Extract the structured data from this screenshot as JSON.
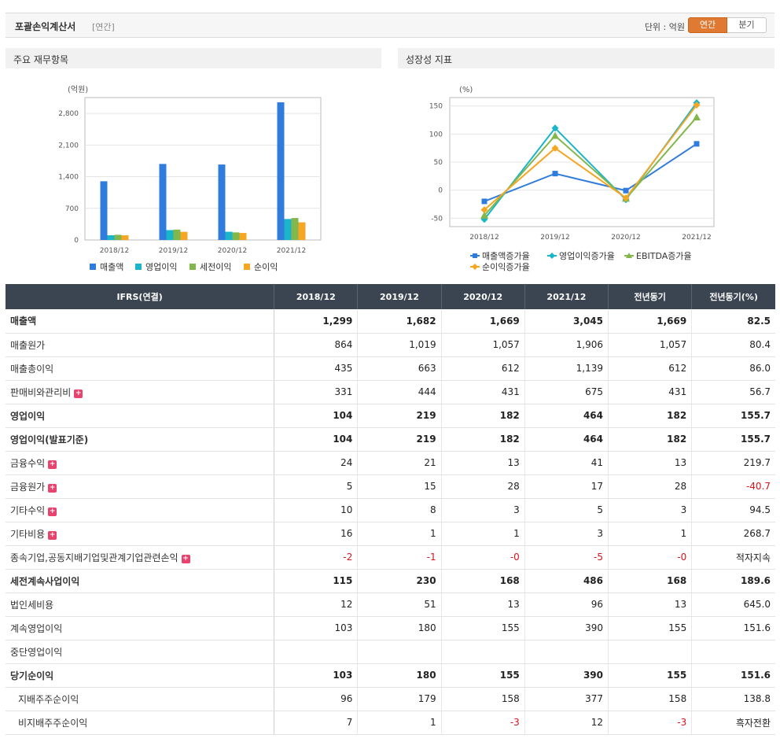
{
  "header": {
    "title": "포괄손익계산서",
    "period_label": "[연간]",
    "unit_label": "단위 : 억원",
    "tab_annual": "연간",
    "tab_quarter": "분기"
  },
  "panels": {
    "left_title": "주요 재무항목",
    "right_title": "성장성 지표"
  },
  "colors": {
    "accent": "#e07a33",
    "header_bg": "#3b4552",
    "negative": "#d6141d",
    "series_blue": "#2f7cdc",
    "series_cyan": "#1bb5c9",
    "series_green": "#82b74b",
    "series_orange": "#f5a623"
  },
  "chart_data": [
    {
      "type": "bar",
      "ylabel": "(억원)",
      "categories": [
        "2018/12",
        "2019/12",
        "2020/12",
        "2021/12"
      ],
      "yticks": [
        "0",
        "700",
        "1,400",
        "2,100",
        "2,800"
      ],
      "ylim": [
        0,
        3150
      ],
      "grid": true,
      "legend_position": "bottom",
      "series": [
        {
          "name": "매출액",
          "values": [
            1299,
            1682,
            1669,
            3045
          ]
        },
        {
          "name": "영업이익",
          "values": [
            104,
            219,
            182,
            464
          ]
        },
        {
          "name": "세전이익",
          "values": [
            115,
            230,
            168,
            486
          ]
        },
        {
          "name": "순이익",
          "values": [
            103,
            180,
            155,
            390
          ]
        }
      ]
    },
    {
      "type": "line",
      "ylabel": "(%)",
      "categories": [
        "2018/12",
        "2019/12",
        "2020/12",
        "2021/12"
      ],
      "yticks": [
        "-50",
        "0",
        "50",
        "100",
        "150"
      ],
      "ylim": [
        -65,
        165
      ],
      "grid": true,
      "legend_position": "bottom",
      "series": [
        {
          "name": "매출액증가율",
          "values": [
            -20,
            29.5,
            -0.8,
            82.5
          ]
        },
        {
          "name": "영업이익증가율",
          "values": [
            -52,
            110.6,
            -16.9,
            155.7
          ]
        },
        {
          "name": "EBITDA증가율",
          "values": [
            -45,
            97,
            -15,
            130
          ]
        },
        {
          "name": "순이익증가율",
          "values": [
            -35,
            74.8,
            -13.9,
            151.6
          ]
        }
      ]
    }
  ],
  "table": {
    "headers": [
      "IFRS(연결)",
      "2018/12",
      "2019/12",
      "2020/12",
      "2021/12",
      "전년동기",
      "전년동기(%)"
    ],
    "rows": [
      {
        "label": "매출액",
        "bold": true,
        "expand": false,
        "indent": false,
        "values": [
          "1,299",
          "1,682",
          "1,669",
          "3,045",
          "1,669",
          "82.5"
        ]
      },
      {
        "label": "매출원가",
        "bold": false,
        "expand": false,
        "indent": false,
        "values": [
          "864",
          "1,019",
          "1,057",
          "1,906",
          "1,057",
          "80.4"
        ]
      },
      {
        "label": "매출총이익",
        "bold": false,
        "expand": false,
        "indent": false,
        "values": [
          "435",
          "663",
          "612",
          "1,139",
          "612",
          "86.0"
        ]
      },
      {
        "label": "판매비와관리비",
        "bold": false,
        "expand": true,
        "indent": false,
        "values": [
          "331",
          "444",
          "431",
          "675",
          "431",
          "56.7"
        ]
      },
      {
        "label": "영업이익",
        "bold": true,
        "expand": false,
        "indent": false,
        "values": [
          "104",
          "219",
          "182",
          "464",
          "182",
          "155.7"
        ]
      },
      {
        "label": "영업이익(발표기준)",
        "bold": true,
        "expand": false,
        "indent": false,
        "values": [
          "104",
          "219",
          "182",
          "464",
          "182",
          "155.7"
        ]
      },
      {
        "label": "금융수익",
        "bold": false,
        "expand": true,
        "indent": false,
        "values": [
          "24",
          "21",
          "13",
          "41",
          "13",
          "219.7"
        ]
      },
      {
        "label": "금융원가",
        "bold": false,
        "expand": true,
        "indent": false,
        "values": [
          "5",
          "15",
          "28",
          "17",
          "28",
          "-40.7"
        ]
      },
      {
        "label": "기타수익",
        "bold": false,
        "expand": true,
        "indent": false,
        "values": [
          "10",
          "8",
          "3",
          "5",
          "3",
          "94.5"
        ]
      },
      {
        "label": "기타비용",
        "bold": false,
        "expand": true,
        "indent": false,
        "values": [
          "16",
          "1",
          "1",
          "3",
          "1",
          "268.7"
        ]
      },
      {
        "label": "종속기업,공동지배기업및관계기업관련손익",
        "bold": false,
        "expand": true,
        "indent": false,
        "values": [
          "-2",
          "-1",
          "-0",
          "-5",
          "-0",
          "적자지속"
        ]
      },
      {
        "label": "세전계속사업이익",
        "bold": true,
        "expand": false,
        "indent": false,
        "values": [
          "115",
          "230",
          "168",
          "486",
          "168",
          "189.6"
        ]
      },
      {
        "label": "법인세비용",
        "bold": false,
        "expand": false,
        "indent": false,
        "values": [
          "12",
          "51",
          "13",
          "96",
          "13",
          "645.0"
        ]
      },
      {
        "label": "계속영업이익",
        "bold": false,
        "expand": false,
        "indent": false,
        "values": [
          "103",
          "180",
          "155",
          "390",
          "155",
          "151.6"
        ]
      },
      {
        "label": "중단영업이익",
        "bold": false,
        "expand": false,
        "indent": false,
        "values": [
          "",
          "",
          "",
          "",
          "",
          ""
        ]
      },
      {
        "label": "당기순이익",
        "bold": true,
        "expand": false,
        "indent": false,
        "values": [
          "103",
          "180",
          "155",
          "390",
          "155",
          "151.6"
        ]
      },
      {
        "label": "지배주주순이익",
        "bold": false,
        "expand": false,
        "indent": true,
        "values": [
          "96",
          "179",
          "158",
          "377",
          "158",
          "138.8"
        ]
      },
      {
        "label": "비지배주주순이익",
        "bold": false,
        "expand": false,
        "indent": true,
        "values": [
          "7",
          "1",
          "-3",
          "12",
          "-3",
          "흑자전환"
        ]
      }
    ]
  }
}
